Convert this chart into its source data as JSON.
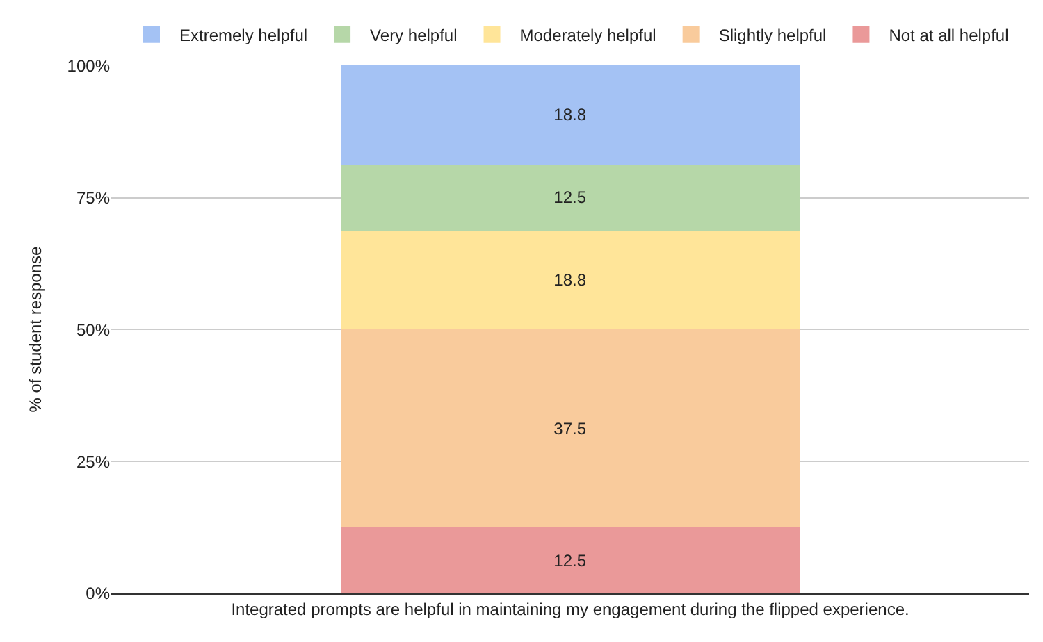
{
  "chart_data": {
    "type": "bar",
    "stacked": true,
    "categories": [
      "Integrated prompts are helpful in maintaining my engagement during the flipped experience."
    ],
    "ylabel": "% of student response",
    "ylim": [
      0,
      100.1
    ],
    "yticks": [
      {
        "value": 0,
        "label": "0%"
      },
      {
        "value": 25,
        "label": "25%"
      },
      {
        "value": 50,
        "label": "50%"
      },
      {
        "value": 75,
        "label": "75%"
      },
      {
        "value": 100,
        "label": "100%"
      }
    ],
    "series": [
      {
        "name": "Not at all helpful",
        "color": "#ea9999",
        "values": [
          12.5
        ]
      },
      {
        "name": "Slightly helpful",
        "color": "#f9cb9c",
        "values": [
          37.5
        ]
      },
      {
        "name": "Moderately helpful",
        "color": "#ffe599",
        "values": [
          18.8
        ]
      },
      {
        "name": "Very helpful",
        "color": "#b6d7a8",
        "values": [
          12.5
        ]
      },
      {
        "name": "Extremely helpful",
        "color": "#a4c2f4",
        "values": [
          18.8
        ]
      }
    ],
    "data_labels": true,
    "grid": "y",
    "legend": "top"
  }
}
